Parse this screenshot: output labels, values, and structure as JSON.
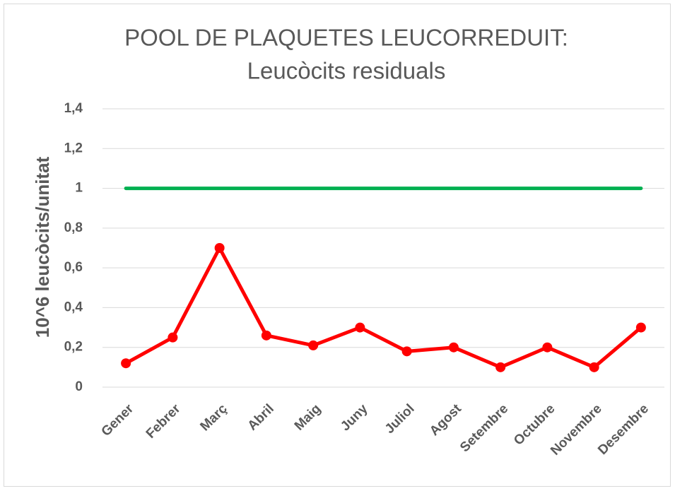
{
  "chart_data": {
    "type": "line",
    "title": [
      "POOL DE PLAQUETES LEUCORREDUIT:",
      "Leucòcits residuals"
    ],
    "y_label": "10^6 leucòcits/unitat",
    "categories": [
      "Gener",
      "Febrer",
      "Març",
      "Abril",
      "Maig",
      "Juny",
      "Juliol",
      "Agost",
      "Setembre",
      "Octubre",
      "Novembre",
      "Desembre"
    ],
    "series": [
      {
        "color": "#ff0000",
        "markers": true,
        "values": [
          0.12,
          0.25,
          0.7,
          0.26,
          0.21,
          0.3,
          0.18,
          0.2,
          0.1,
          0.2,
          0.1,
          0.3
        ]
      },
      {
        "color": "#00b050",
        "markers": false,
        "values": [
          1,
          1,
          1,
          1,
          1,
          1,
          1,
          1,
          1,
          1,
          1,
          1
        ]
      }
    ],
    "ylim": [
      0,
      1.4
    ],
    "yticks": [
      0,
      {
        "value": 0.2,
        "label": "0,2"
      },
      {
        "value": 0.4,
        "label": "0,4"
      },
      {
        "value": 0.6,
        "label": "0,6"
      },
      {
        "value": 0.8,
        "label": "0,8"
      },
      1,
      {
        "value": 1.2,
        "label": "1,2"
      },
      {
        "value": 1.4,
        "label": "1,4"
      }
    ],
    "grid": true
  }
}
